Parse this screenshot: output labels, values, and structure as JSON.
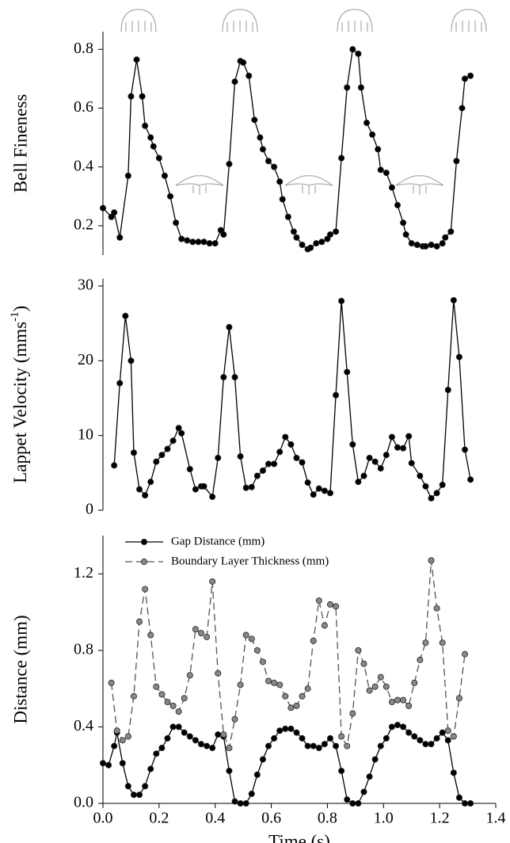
{
  "chart_data": [
    {
      "type": "line",
      "ylabel": "Bell Fineness",
      "color": "#000000",
      "marker": "circle",
      "xlim": [
        0,
        1.4
      ],
      "ylim": [
        0.1,
        0.86
      ],
      "yticks": [
        0.2,
        0.4,
        0.6,
        0.8
      ],
      "x": [
        0.0,
        0.03,
        0.04,
        0.06,
        0.09,
        0.1,
        0.12,
        0.14,
        0.15,
        0.17,
        0.18,
        0.2,
        0.22,
        0.24,
        0.26,
        0.28,
        0.3,
        0.32,
        0.34,
        0.36,
        0.38,
        0.4,
        0.42,
        0.43,
        0.45,
        0.47,
        0.49,
        0.5,
        0.52,
        0.54,
        0.56,
        0.57,
        0.59,
        0.61,
        0.63,
        0.64,
        0.66,
        0.68,
        0.69,
        0.71,
        0.73,
        0.74,
        0.76,
        0.78,
        0.8,
        0.81,
        0.83,
        0.85,
        0.87,
        0.89,
        0.91,
        0.92,
        0.94,
        0.96,
        0.98,
        0.99,
        1.01,
        1.03,
        1.05,
        1.07,
        1.08,
        1.1,
        1.12,
        1.14,
        1.15,
        1.17,
        1.19,
        1.21,
        1.22,
        1.24,
        1.26,
        1.28,
        1.29,
        1.31
      ],
      "values": [
        0.26,
        0.23,
        0.245,
        0.16,
        0.37,
        0.64,
        0.765,
        0.64,
        0.54,
        0.5,
        0.47,
        0.43,
        0.37,
        0.3,
        0.21,
        0.155,
        0.15,
        0.145,
        0.145,
        0.145,
        0.14,
        0.14,
        0.185,
        0.17,
        0.41,
        0.69,
        0.76,
        0.755,
        0.71,
        0.56,
        0.5,
        0.46,
        0.42,
        0.4,
        0.35,
        0.29,
        0.23,
        0.18,
        0.16,
        0.135,
        0.12,
        0.125,
        0.14,
        0.145,
        0.155,
        0.17,
        0.18,
        0.43,
        0.67,
        0.8,
        0.785,
        0.67,
        0.55,
        0.51,
        0.46,
        0.39,
        0.38,
        0.33,
        0.27,
        0.21,
        0.17,
        0.14,
        0.135,
        0.13,
        0.13,
        0.135,
        0.13,
        0.14,
        0.16,
        0.18,
        0.42,
        0.6,
        0.7,
        0.71
      ]
    },
    {
      "type": "line",
      "ylabel_parts": [
        "Lappet Velocity (mms",
        "-1",
        ")"
      ],
      "color": "#000000",
      "marker": "circle",
      "xlim": [
        0,
        1.4
      ],
      "ylim": [
        0,
        31
      ],
      "yticks": [
        0,
        10,
        20,
        30
      ],
      "x": [
        0.04,
        0.06,
        0.08,
        0.1,
        0.11,
        0.13,
        0.15,
        0.17,
        0.19,
        0.21,
        0.23,
        0.25,
        0.27,
        0.28,
        0.31,
        0.33,
        0.35,
        0.36,
        0.39,
        0.41,
        0.43,
        0.45,
        0.47,
        0.49,
        0.51,
        0.53,
        0.55,
        0.57,
        0.59,
        0.61,
        0.63,
        0.65,
        0.67,
        0.69,
        0.71,
        0.73,
        0.75,
        0.77,
        0.79,
        0.81,
        0.83,
        0.85,
        0.87,
        0.89,
        0.91,
        0.93,
        0.95,
        0.97,
        0.99,
        1.01,
        1.03,
        1.05,
        1.07,
        1.09,
        1.1,
        1.13,
        1.15,
        1.17,
        1.19,
        1.21,
        1.23,
        1.25,
        1.27,
        1.29,
        1.31
      ],
      "values": [
        6,
        17,
        26,
        20,
        7.7,
        2.8,
        2,
        3.8,
        6.5,
        7.4,
        8.2,
        9.3,
        11,
        10.3,
        5.5,
        2.8,
        3.2,
        3.2,
        1.8,
        7,
        17.8,
        24.5,
        17.8,
        7.2,
        3,
        3.1,
        4.6,
        5.3,
        6.2,
        6.2,
        7.8,
        9.8,
        8.8,
        7,
        6.4,
        3.7,
        2.1,
        2.9,
        2.6,
        2.3,
        15.4,
        28,
        18.5,
        8.8,
        3.8,
        4.6,
        7,
        6.5,
        5.6,
        7.4,
        9.8,
        8.4,
        8.3,
        9.9,
        6.3,
        4.6,
        3.2,
        1.6,
        2.3,
        3.4,
        16.1,
        28.1,
        20.5,
        8.1,
        4.1
      ]
    },
    {
      "type": "line",
      "ylabel": "Distance (mm)",
      "xlabel": "Time (s)",
      "legend": "upper left",
      "xlim": [
        0,
        1.4
      ],
      "ylim": [
        0,
        1.4
      ],
      "xticks": [
        {
          "value": 0,
          "label": "0.0"
        },
        0.2,
        0.4,
        0.6,
        0.8,
        {
          "value": 1,
          "label": "1.0"
        },
        1.2,
        1.4
      ],
      "yticks": [
        {
          "value": 0,
          "label": "0.0"
        },
        0.4,
        0.8,
        1.2
      ],
      "series": [
        {
          "name": "Gap Distance (mm)",
          "color": "#000000",
          "marker_color": "#000000",
          "dashed": false,
          "x": [
            0.0,
            0.02,
            0.04,
            0.05,
            0.07,
            0.09,
            0.11,
            0.13,
            0.15,
            0.17,
            0.19,
            0.21,
            0.23,
            0.25,
            0.27,
            0.29,
            0.31,
            0.33,
            0.35,
            0.37,
            0.39,
            0.41,
            0.43,
            0.45,
            0.47,
            0.49,
            0.51,
            0.53,
            0.55,
            0.57,
            0.59,
            0.61,
            0.63,
            0.65,
            0.67,
            0.69,
            0.71,
            0.73,
            0.75,
            0.77,
            0.79,
            0.81,
            0.83,
            0.85,
            0.87,
            0.89,
            0.91,
            0.93,
            0.95,
            0.97,
            0.99,
            1.01,
            1.03,
            1.05,
            1.07,
            1.09,
            1.11,
            1.13,
            1.15,
            1.17,
            1.19,
            1.21,
            1.23,
            1.25,
            1.27,
            1.29,
            1.31
          ],
          "values": [
            0.21,
            0.2,
            0.3,
            0.37,
            0.21,
            0.09,
            0.045,
            0.045,
            0.09,
            0.18,
            0.26,
            0.29,
            0.34,
            0.4,
            0.4,
            0.37,
            0.35,
            0.33,
            0.31,
            0.3,
            0.29,
            0.36,
            0.35,
            0.17,
            0.01,
            0.0,
            0.0,
            0.05,
            0.15,
            0.23,
            0.3,
            0.34,
            0.38,
            0.39,
            0.39,
            0.37,
            0.34,
            0.3,
            0.3,
            0.29,
            0.31,
            0.34,
            0.3,
            0.17,
            0.02,
            0.0,
            0.0,
            0.06,
            0.14,
            0.23,
            0.3,
            0.34,
            0.4,
            0.41,
            0.4,
            0.37,
            0.35,
            0.33,
            0.31,
            0.31,
            0.34,
            0.37,
            0.33,
            0.16,
            0.03,
            0.0,
            0.0
          ]
        },
        {
          "name": "Boundary Layer Thickness (mm)",
          "color": "#555555",
          "marker_color": "#888888",
          "dashed": true,
          "x": [
            0.03,
            0.05,
            0.07,
            0.09,
            0.11,
            0.13,
            0.15,
            0.17,
            0.19,
            0.21,
            0.23,
            0.25,
            0.27,
            0.29,
            0.31,
            0.33,
            0.35,
            0.37,
            0.39,
            0.41,
            0.43,
            0.45,
            0.47,
            0.49,
            0.51,
            0.53,
            0.55,
            0.57,
            0.59,
            0.61,
            0.63,
            0.65,
            0.67,
            0.69,
            0.71,
            0.73,
            0.75,
            0.77,
            0.79,
            0.81,
            0.83,
            0.85,
            0.87,
            0.89,
            0.91,
            0.93,
            0.95,
            0.97,
            0.99,
            1.01,
            1.03,
            1.05,
            1.07,
            1.09,
            1.11,
            1.13,
            1.15,
            1.17,
            1.19,
            1.21,
            1.23,
            1.25,
            1.27,
            1.29
          ],
          "values": [
            0.63,
            0.38,
            0.33,
            0.35,
            0.56,
            0.95,
            1.12,
            0.88,
            0.61,
            0.57,
            0.53,
            0.51,
            0.48,
            0.55,
            0.67,
            0.91,
            0.89,
            0.87,
            1.16,
            0.68,
            0.36,
            0.29,
            0.44,
            0.62,
            0.88,
            0.86,
            0.8,
            0.74,
            0.64,
            0.63,
            0.62,
            0.56,
            0.5,
            0.51,
            0.56,
            0.6,
            0.85,
            1.06,
            0.93,
            1.04,
            1.03,
            0.35,
            0.3,
            0.47,
            0.8,
            0.73,
            0.59,
            0.61,
            0.66,
            0.61,
            0.53,
            0.54,
            0.54,
            0.51,
            0.63,
            0.75,
            0.84,
            1.27,
            1.02,
            0.84,
            0.38,
            0.35,
            0.55,
            0.78
          ]
        }
      ]
    }
  ]
}
